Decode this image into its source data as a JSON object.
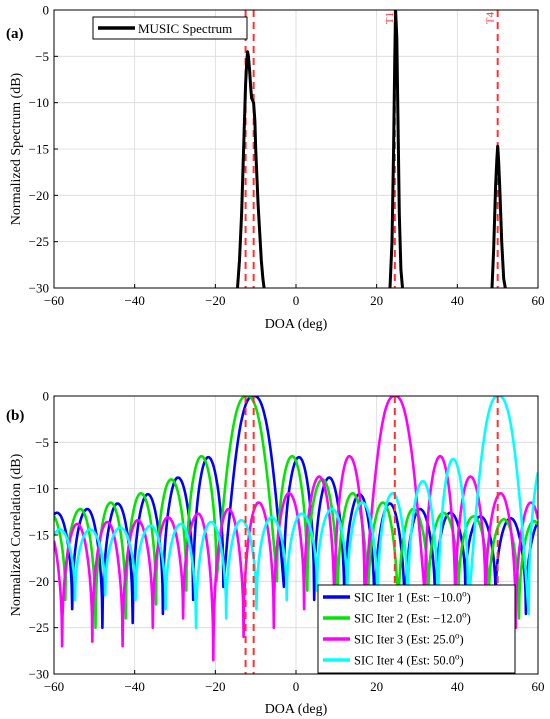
{
  "panel_a": {
    "label": "(a)",
    "legend": {
      "entries": [
        {
          "name": "MUSIC Spectrum",
          "color": "#000000"
        }
      ]
    },
    "target_labels": [
      {
        "text": "T1",
        "x": 25
      },
      {
        "text": "T4",
        "x": 50
      }
    ]
  },
  "panel_b": {
    "label": "(b)",
    "legend": {
      "entries": [
        {
          "prefix": "SIC Iter 1 (Est: ",
          "value": "−10.0",
          "sup": "o",
          "suffix": ")",
          "color": "#0000ff"
        },
        {
          "prefix": "SIC Iter 2 (Est: ",
          "value": "−12.0",
          "sup": "o",
          "suffix": ")",
          "color": "#00e600"
        },
        {
          "prefix": "SIC Iter 3 (Est: ",
          "value": "25.0",
          "sup": "o",
          "suffix": ")",
          "color": "#ff00ff"
        },
        {
          "prefix": "SIC Iter 4 (Est: ",
          "value": "50.0",
          "sup": "o",
          "suffix": ")",
          "color": "#00ffff"
        }
      ]
    }
  },
  "chart_data": [
    {
      "type": "line",
      "xlabel": "DOA (deg)",
      "ylabel": "Normalized Spectrum (dB)",
      "xlim": [
        -60,
        60
      ],
      "ylim": [
        -30,
        0
      ],
      "xticks": [
        -60,
        -40,
        -20,
        0,
        20,
        40,
        60
      ],
      "yticks": [
        0,
        -5,
        -10,
        -15,
        -20,
        -25,
        -30
      ],
      "grid": true,
      "legend_position": "top-left",
      "reference_lines": {
        "x": [
          -12.5,
          -10.5,
          24.5,
          50
        ],
        "color": "#ff3030",
        "style": "dashed"
      },
      "series": [
        {
          "name": "MUSIC Spectrum",
          "color": "#000000",
          "x": [
            -14.5,
            -14,
            -13.5,
            -13,
            -12.5,
            -12.2,
            -12,
            -11.8,
            -11.5,
            -11.2,
            -11,
            -10.7,
            -10.5,
            -10.2,
            -10,
            -9.7,
            -9.4,
            -9,
            -8.6,
            -8.2,
            -7.9,
            23.3,
            23.8,
            24.2,
            24.5,
            24.7,
            25,
            25.3,
            25.6,
            26,
            26.4,
            48.6,
            49,
            49.5,
            49.8,
            50,
            50.2,
            50.5,
            51,
            51.5,
            51.9
          ],
          "y": [
            -30,
            -27,
            -22,
            -15,
            -8,
            -5.5,
            -4.5,
            -5,
            -6.5,
            -8.5,
            -9.5,
            -9.8,
            -10,
            -12,
            -15,
            -18,
            -21,
            -24,
            -27,
            -29,
            -30,
            -30,
            -25,
            -15,
            -5,
            0,
            -3,
            -12,
            -22,
            -28,
            -30,
            -30,
            -26,
            -19,
            -16,
            -14.7,
            -16,
            -19,
            -25,
            -29,
            -30
          ]
        }
      ]
    },
    {
      "type": "line",
      "xlabel": "DOA (deg)",
      "ylabel": "Normalized Correlation (dB)",
      "xlim": [
        -60,
        60
      ],
      "ylim": [
        -30,
        0
      ],
      "xticks": [
        -60,
        -40,
        -20,
        0,
        20,
        40,
        60
      ],
      "yticks": [
        0,
        -5,
        -10,
        -15,
        -20,
        -25,
        -30
      ],
      "grid": true,
      "legend_position": "bottom-right",
      "reference_lines": {
        "x": [
          -12.5,
          -10.5,
          24.5,
          50
        ],
        "color": "#ff3030",
        "style": "dashed"
      },
      "series": [
        {
          "name": "SIC Iter 1 (Est: −10.0o)",
          "color": "#0000ff",
          "center": -10.5,
          "lobe_half_width": 7.5,
          "sidelobes": [
            -6.6,
            -8.8,
            -10.6,
            -11.6,
            -12.2,
            -12.6,
            -13,
            -13.2,
            -13.4,
            -13.6,
            -13.8
          ],
          "nulls": [
            -20.6,
            -22,
            -23.5,
            -24.5,
            -25,
            -23,
            -21,
            -22,
            -23.5,
            -24.5,
            -25,
            -26
          ]
        },
        {
          "name": "SIC Iter 2 (Est: −12.0o)",
          "color": "#00e600",
          "center": -12.2,
          "lobe_half_width": 7.5,
          "sidelobes": [
            -6.5,
            -9,
            -10.5,
            -11.5,
            -12.2,
            -12.6,
            -13,
            -13.3,
            -13.5,
            -13.8,
            -14
          ],
          "nulls": [
            -20,
            -21,
            -22.5,
            -24,
            -25,
            -22,
            -21.5,
            -22.5,
            -24,
            -25,
            -26,
            -27
          ]
        },
        {
          "name": "SIC Iter 3 (Est: 25.0o)",
          "color": "#ff00ff",
          "center": 24.5,
          "lobe_half_width": 7.5,
          "sidelobes": [
            -6.5,
            -8.7,
            -10.5,
            -11.5,
            -12.2,
            -12.7,
            -13.1,
            -13.4,
            -13.6,
            -13.8,
            -14
          ],
          "nulls": [
            -22,
            -24,
            -23,
            -25,
            -26,
            -28.5,
            -24,
            -25,
            -27,
            -26.5,
            -27,
            -28
          ]
        },
        {
          "name": "SIC Iter 4 (Est: 50.0o)",
          "color": "#00ffff",
          "center": 50.2,
          "lobe_half_width": 7.5,
          "sidelobes": [
            -6.8,
            -9.2,
            -10.5,
            -11.5,
            -12.2,
            -12.7,
            -13.1,
            -13.4,
            -13.6,
            -13.8,
            -14,
            -14.2,
            -14.4
          ],
          "nulls": [
            -23.5,
            -25,
            -24,
            -23,
            -22,
            -21,
            -22,
            -23,
            -24,
            -25,
            -23,
            -22,
            -21.5,
            -22
          ]
        }
      ]
    }
  ]
}
